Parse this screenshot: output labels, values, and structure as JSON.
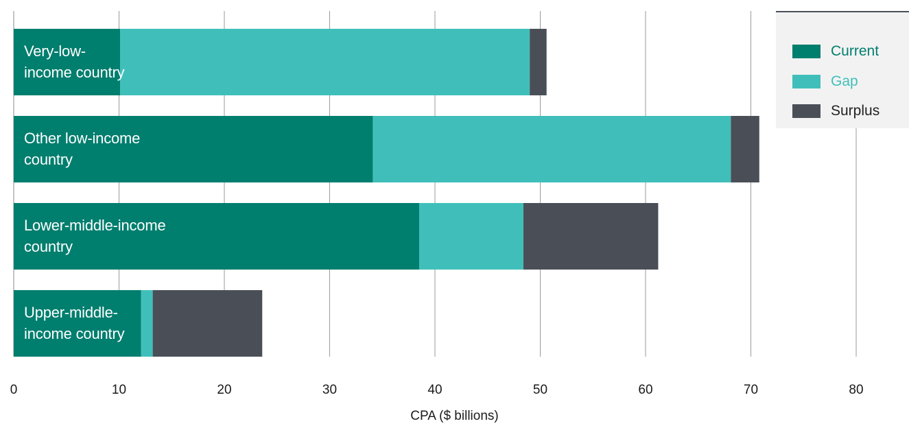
{
  "chart_data": {
    "type": "bar",
    "orientation": "horizontal",
    "stacked": true,
    "categories_lines": [
      [
        "Very-low-",
        "income country"
      ],
      [
        "Other low-income",
        "country"
      ],
      [
        "Lower-middle-income",
        "country"
      ],
      [
        "Upper-middle-",
        "income country"
      ]
    ],
    "series": [
      {
        "name": "Current",
        "color": "#007e6e",
        "values": [
          10.1,
          34.1,
          38.5,
          12.1
        ]
      },
      {
        "name": "Gap",
        "color": "#40bfba",
        "values": [
          38.9,
          34.0,
          9.9,
          1.1
        ]
      },
      {
        "name": "Surplus",
        "color": "#4a4f57",
        "values": [
          1.6,
          2.7,
          12.8,
          10.4
        ]
      }
    ],
    "xlabel": "CPA ($ billions)",
    "xlim": [
      0,
      80
    ],
    "xticks": [
      "0",
      "10",
      "20",
      "30",
      "40",
      "50",
      "60",
      "70",
      "80"
    ],
    "grid": true,
    "legend_position": "top-right"
  }
}
